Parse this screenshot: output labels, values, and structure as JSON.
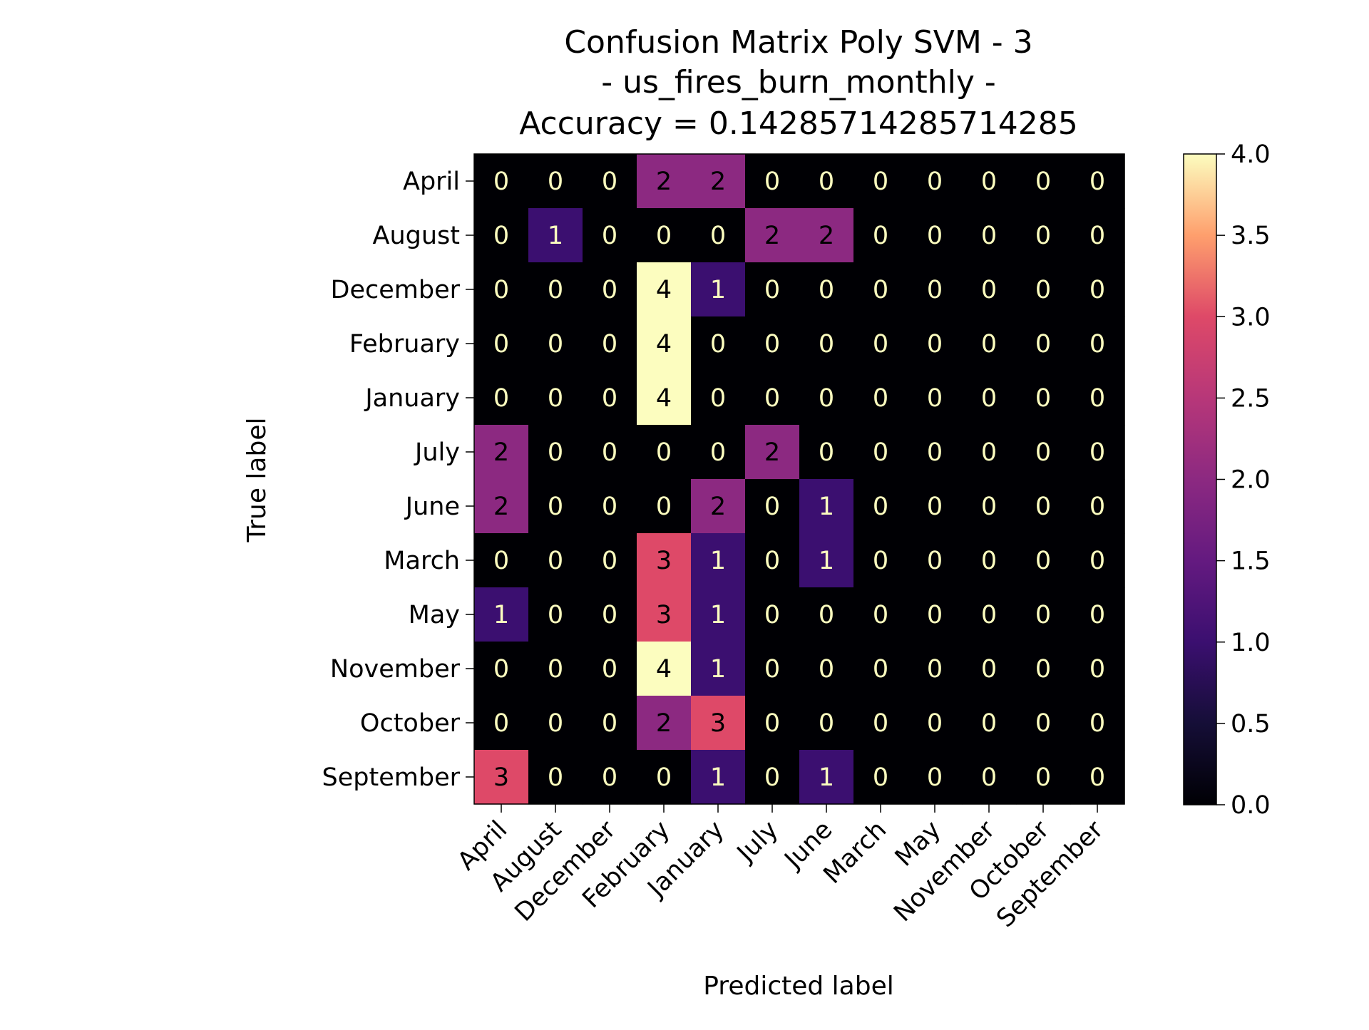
{
  "chart_data": {
    "type": "heatmap",
    "title_lines": [
      "Confusion Matrix Poly SVM - 3",
      "- us_fires_burn_monthly -",
      "Accuracy = 0.14285714285714285"
    ],
    "xlabel": "Predicted label",
    "ylabel": "True label",
    "row_labels": [
      "April",
      "August",
      "December",
      "February",
      "January",
      "July",
      "June",
      "March",
      "May",
      "November",
      "October",
      "September"
    ],
    "col_labels": [
      "April",
      "August",
      "December",
      "February",
      "January",
      "July",
      "June",
      "March",
      "May",
      "November",
      "October",
      "September"
    ],
    "matrix": [
      [
        0,
        0,
        0,
        2,
        2,
        0,
        0,
        0,
        0,
        0,
        0,
        0
      ],
      [
        0,
        1,
        0,
        0,
        0,
        2,
        2,
        0,
        0,
        0,
        0,
        0
      ],
      [
        0,
        0,
        0,
        4,
        1,
        0,
        0,
        0,
        0,
        0,
        0,
        0
      ],
      [
        0,
        0,
        0,
        4,
        0,
        0,
        0,
        0,
        0,
        0,
        0,
        0
      ],
      [
        0,
        0,
        0,
        4,
        0,
        0,
        0,
        0,
        0,
        0,
        0,
        0
      ],
      [
        2,
        0,
        0,
        0,
        0,
        2,
        0,
        0,
        0,
        0,
        0,
        0
      ],
      [
        2,
        0,
        0,
        0,
        2,
        0,
        1,
        0,
        0,
        0,
        0,
        0
      ],
      [
        0,
        0,
        0,
        3,
        1,
        0,
        1,
        0,
        0,
        0,
        0,
        0
      ],
      [
        1,
        0,
        0,
        3,
        1,
        0,
        0,
        0,
        0,
        0,
        0,
        0
      ],
      [
        0,
        0,
        0,
        4,
        1,
        0,
        0,
        0,
        0,
        0,
        0,
        0
      ],
      [
        0,
        0,
        0,
        2,
        3,
        0,
        0,
        0,
        0,
        0,
        0,
        0
      ],
      [
        3,
        0,
        0,
        0,
        1,
        0,
        1,
        0,
        0,
        0,
        0,
        0
      ]
    ],
    "colormap": "magma",
    "vmin": 0,
    "vmax": 4,
    "colorbar_ticks": [
      "0.0",
      "0.5",
      "1.0",
      "1.5",
      "2.0",
      "2.5",
      "3.0",
      "3.5",
      "4.0"
    ],
    "grid": false,
    "colors": {
      "light_text": "#fcfdbf",
      "dark_text": "#000000"
    }
  }
}
